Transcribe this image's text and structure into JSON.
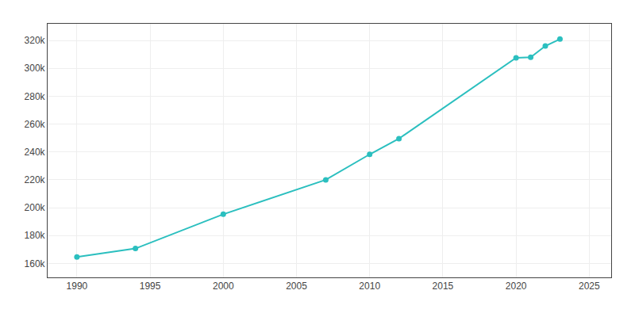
{
  "chart_data": {
    "type": "line",
    "x": [
      1990,
      1994,
      2000,
      2007,
      2010,
      2012,
      2020,
      2021,
      2022,
      2023
    ],
    "values": [
      164693,
      170711,
      195296,
      220000,
      238300,
      249562,
      307573,
      308000,
      316081,
      321000
    ],
    "color": "#2bbfbf",
    "marker": "circle",
    "line_style": "solid",
    "xlim": [
      1988.0,
      2026.5
    ],
    "ylim": [
      150000,
      332000
    ],
    "xticks": [
      1990,
      1995,
      2000,
      2005,
      2010,
      2015,
      2020,
      2025
    ],
    "yticks": [
      {
        "value": 160000,
        "label": "160k"
      },
      {
        "value": 180000,
        "label": "180k"
      },
      {
        "value": 200000,
        "label": "200k"
      },
      {
        "value": 220000,
        "label": "220k"
      },
      {
        "value": 240000,
        "label": "240k"
      },
      {
        "value": 260000,
        "label": "260k"
      },
      {
        "value": 280000,
        "label": "280k"
      },
      {
        "value": 300000,
        "label": "300k"
      },
      {
        "value": 320000,
        "label": "320k"
      }
    ],
    "grid": true
  }
}
